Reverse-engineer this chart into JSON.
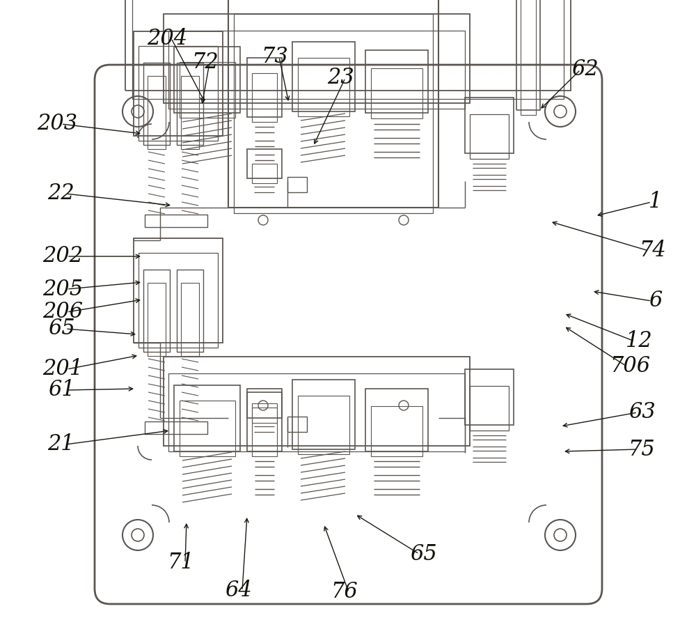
{
  "bg_color": "#ffffff",
  "lc": "#5a5550",
  "fig_width": 10.0,
  "fig_height": 9.23,
  "font_size": 22,
  "arrow_label_data": [
    [
      "203",
      82,
      178,
      205,
      192
    ],
    [
      "204",
      240,
      55,
      295,
      148
    ],
    [
      "72",
      295,
      90,
      290,
      152
    ],
    [
      "73",
      395,
      82,
      415,
      148
    ],
    [
      "23",
      490,
      112,
      450,
      210
    ],
    [
      "62",
      840,
      100,
      775,
      158
    ],
    [
      "1",
      942,
      290,
      855,
      310
    ],
    [
      "74",
      938,
      360,
      790,
      318
    ],
    [
      "6",
      942,
      432,
      850,
      418
    ],
    [
      "706",
      905,
      525,
      810,
      468
    ],
    [
      "12",
      918,
      490,
      810,
      450
    ],
    [
      "63",
      922,
      592,
      805,
      612
    ],
    [
      "75",
      922,
      645,
      808,
      648
    ],
    [
      "22",
      88,
      278,
      248,
      295
    ],
    [
      "202",
      90,
      368,
      205,
      368
    ],
    [
      "205",
      90,
      415,
      205,
      405
    ],
    [
      "206",
      90,
      448,
      205,
      430
    ],
    [
      "201",
      90,
      530,
      200,
      510
    ],
    [
      "65",
      88,
      472,
      198,
      480
    ],
    [
      "61",
      88,
      560,
      195,
      558
    ],
    [
      "21",
      88,
      638,
      245,
      618
    ],
    [
      "71",
      260,
      808,
      268,
      748
    ],
    [
      "64",
      342,
      848,
      355,
      740
    ],
    [
      "65",
      608,
      795,
      510,
      738
    ],
    [
      "76",
      495,
      850,
      465,
      752
    ]
  ]
}
